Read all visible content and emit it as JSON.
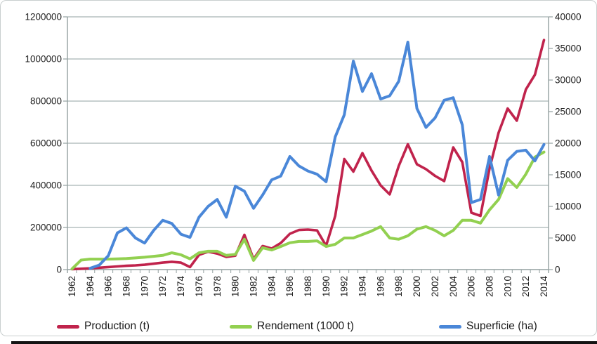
{
  "chart_data": {
    "type": "line",
    "title": "",
    "xlabel": "",
    "ylabel_left": "",
    "ylabel_right": "",
    "grid": true,
    "legend_position": "bottom",
    "x_label_interval": 2,
    "years": [
      1962,
      1963,
      1964,
      1965,
      1966,
      1967,
      1968,
      1969,
      1970,
      1971,
      1972,
      1973,
      1974,
      1975,
      1976,
      1977,
      1978,
      1979,
      1980,
      1981,
      1982,
      1983,
      1984,
      1985,
      1986,
      1987,
      1988,
      1989,
      1990,
      1991,
      1992,
      1993,
      1994,
      1995,
      1996,
      1997,
      1998,
      1999,
      2000,
      2001,
      2002,
      2003,
      2004,
      2005,
      2006,
      2007,
      2008,
      2009,
      2010,
      2011,
      2012,
      2013,
      2014
    ],
    "left_axis": {
      "min": 0,
      "max": 1200000,
      "step": 200000
    },
    "right_axis": {
      "min": 0,
      "max": 40000,
      "step": 5000
    },
    "series": [
      {
        "name": "Production (t)",
        "axis": "left",
        "color": "#c0234c",
        "values": [
          2000,
          4000,
          6000,
          9000,
          12000,
          15000,
          18000,
          20000,
          23000,
          28000,
          33000,
          37000,
          33000,
          12000,
          70000,
          85000,
          76000,
          60000,
          66000,
          165000,
          50000,
          112000,
          100000,
          126000,
          170000,
          188000,
          190000,
          186000,
          113000,
          255000,
          525000,
          465000,
          553000,
          470000,
          400000,
          357000,
          492000,
          595000,
          500000,
          477000,
          445000,
          420000,
          580000,
          510000,
          270000,
          255000,
          480000,
          650000,
          765000,
          707000,
          855000,
          925000,
          1090000
        ]
      },
      {
        "name": "Rendement (1000 t)",
        "axis": "right",
        "color": "#92d050",
        "values": [
          100,
          1500,
          1650,
          1650,
          1650,
          1700,
          1750,
          1850,
          1950,
          2100,
          2250,
          2650,
          2350,
          1700,
          2650,
          2900,
          2900,
          2250,
          2400,
          4800,
          1450,
          3450,
          3100,
          3650,
          4250,
          4450,
          4450,
          4550,
          3650,
          4000,
          5000,
          5000,
          5550,
          6100,
          6800,
          5000,
          4800,
          5350,
          6400,
          6800,
          6200,
          5350,
          6200,
          7800,
          7800,
          7350,
          9450,
          11100,
          14400,
          13000,
          15100,
          17800,
          18600
        ]
      },
      {
        "name": "Superficie (ha)",
        "axis": "right",
        "color": "#4a87d8",
        "values": [
          null,
          null,
          200,
          700,
          2200,
          5800,
          6600,
          5000,
          4200,
          6200,
          7800,
          7300,
          5600,
          5100,
          8300,
          10000,
          11100,
          8300,
          13200,
          12400,
          9700,
          11800,
          14200,
          14800,
          17900,
          16400,
          15600,
          15100,
          13900,
          21000,
          24500,
          33000,
          28200,
          31000,
          27000,
          27500,
          29800,
          36000,
          25500,
          22500,
          24000,
          26800,
          27200,
          22900,
          10600,
          11100,
          17900,
          11800,
          17300,
          18700,
          18900,
          17200,
          19800
        ]
      }
    ]
  }
}
